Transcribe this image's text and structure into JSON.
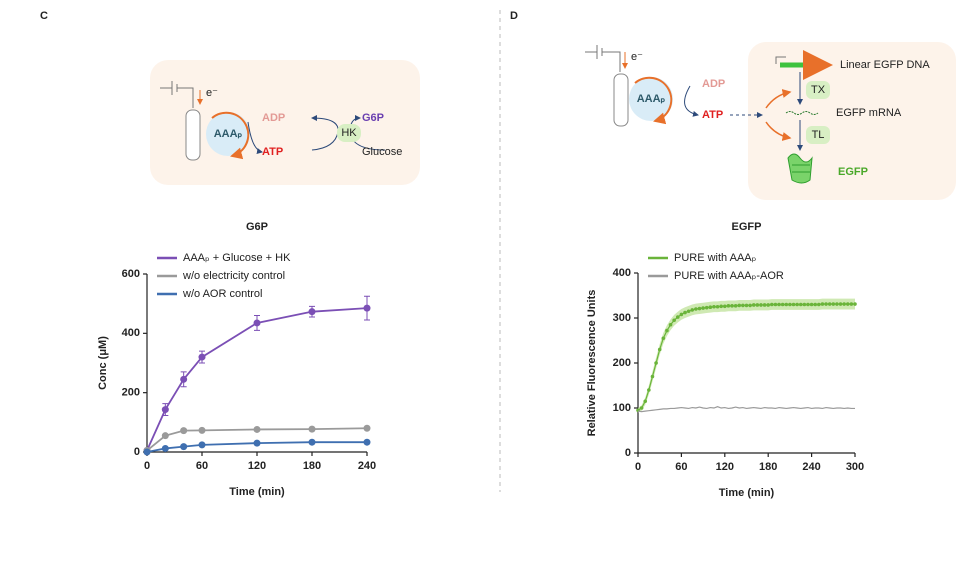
{
  "panel_labels": [
    "C",
    "D"
  ],
  "diagrams": [
    {
      "labels": [
        "e⁻",
        "AAAₚ",
        "ADP",
        "ATP",
        "G6P",
        "HK",
        "Glucose"
      ]
    },
    {
      "labels": [
        "e⁻",
        "AAAₚ",
        "ADP",
        "ATP",
        "Linear EGFP DNA",
        "TX",
        "EGFP mRNA",
        "TL",
        "EGFP"
      ]
    }
  ],
  "chart_data": [
    {
      "type": "line",
      "title": "G6P",
      "xlabel": "Time (min)",
      "ylabel": "Conc (μM)",
      "x": [
        0,
        20,
        40,
        60,
        120,
        180,
        240
      ],
      "xlim": [
        0,
        240
      ],
      "xticks": [
        0,
        60,
        120,
        180,
        240
      ],
      "ylim": [
        0,
        600
      ],
      "yticks": [
        0,
        200,
        400,
        600
      ],
      "error_style": "bars",
      "legend": "upper left",
      "series": [
        {
          "name": "AAAₚ + Glucose + HK",
          "color": "#7b4fb5",
          "markers": true,
          "values": [
            5,
            143,
            245,
            320,
            435,
            473,
            485
          ],
          "errors": [
            5,
            20,
            25,
            20,
            25,
            18,
            40
          ]
        },
        {
          "name": "w/o electricity control",
          "color": "#9a9a9a",
          "markers": true,
          "values": [
            5,
            55,
            72,
            73,
            76,
            77,
            80
          ],
          "errors": [
            2,
            4,
            4,
            3,
            3,
            3,
            4
          ]
        },
        {
          "name": "w/o AOR control",
          "color": "#3f6fb0",
          "markers": true,
          "values": [
            0,
            12,
            18,
            24,
            30,
            33,
            33
          ],
          "errors": [
            1,
            3,
            3,
            3,
            3,
            3,
            3
          ]
        }
      ]
    },
    {
      "type": "line",
      "title": "EGFP",
      "xlabel": "Time (min)",
      "ylabel": "Relative Fluorescence Units",
      "x": [
        0,
        5,
        10,
        15,
        20,
        25,
        30,
        35,
        40,
        45,
        50,
        55,
        60,
        65,
        70,
        75,
        80,
        85,
        90,
        95,
        100,
        105,
        110,
        115,
        120,
        125,
        130,
        135,
        140,
        145,
        150,
        155,
        160,
        165,
        170,
        175,
        180,
        185,
        190,
        195,
        200,
        205,
        210,
        215,
        220,
        225,
        230,
        235,
        240,
        245,
        250,
        255,
        260,
        265,
        270,
        275,
        280,
        285,
        290,
        295,
        300
      ],
      "xlim": [
        0,
        300
      ],
      "xticks": [
        0,
        60,
        120,
        180,
        240,
        300
      ],
      "ylim": [
        0,
        400
      ],
      "yticks": [
        0,
        100,
        200,
        300,
        400
      ],
      "error_style": "band",
      "legend": "upper left",
      "series": [
        {
          "name": "PURE with AAAₚ",
          "color": "#6ab43a",
          "band_color": "#c3e3a0",
          "markers": true,
          "values": [
            95,
            100,
            115,
            140,
            170,
            200,
            230,
            255,
            272,
            285,
            295,
            302,
            308,
            312,
            315,
            318,
            320,
            321,
            322,
            323,
            324,
            325,
            325,
            326,
            326,
            327,
            327,
            327,
            328,
            328,
            328,
            328,
            329,
            329,
            329,
            329,
            329,
            330,
            330,
            330,
            330,
            330,
            330,
            330,
            330,
            330,
            330,
            330,
            330,
            330,
            330,
            331,
            331,
            331,
            331,
            331,
            331,
            331,
            331,
            331,
            331
          ],
          "errors": [
            5,
            6,
            8,
            10,
            11,
            12,
            12,
            12,
            12,
            12,
            12,
            12,
            12,
            12,
            12,
            12,
            12,
            12,
            12,
            12,
            12,
            12,
            12,
            12,
            12,
            12,
            12,
            12,
            12,
            12,
            12,
            12,
            12,
            12,
            12,
            12,
            12,
            12,
            12,
            12,
            12,
            12,
            12,
            12,
            12,
            12,
            12,
            12,
            12,
            12,
            12,
            12,
            12,
            12,
            12,
            12,
            12,
            12,
            12,
            12,
            12
          ]
        },
        {
          "name": "PURE with AAAₚ-AOR",
          "color": "#9a9a9a",
          "markers": false,
          "values": [
            93,
            92,
            93,
            94,
            95,
            96,
            97,
            98,
            98,
            99,
            99,
            100,
            101,
            100,
            99,
            101,
            100,
            102,
            100,
            99,
            101,
            100,
            103,
            100,
            101,
            99,
            100,
            102,
            100,
            101,
            99,
            100,
            101,
            100,
            99,
            101,
            100,
            100,
            99,
            101,
            100,
            99,
            100,
            101,
            100,
            99,
            100,
            101,
            99,
            100,
            100,
            99,
            101,
            100,
            99,
            100,
            100,
            99,
            100,
            99,
            99
          ],
          "errors": [
            2,
            2,
            2,
            2,
            2,
            2,
            2,
            2,
            2,
            2,
            2,
            2,
            2,
            2,
            2,
            2,
            2,
            2,
            2,
            2,
            2,
            2,
            2,
            2,
            2,
            2,
            2,
            2,
            2,
            2,
            2,
            2,
            2,
            2,
            2,
            2,
            2,
            2,
            2,
            2,
            2,
            2,
            2,
            2,
            2,
            2,
            2,
            2,
            2,
            2,
            2,
            2,
            2,
            2,
            2,
            2,
            2,
            2,
            2,
            2,
            2
          ]
        }
      ]
    }
  ]
}
